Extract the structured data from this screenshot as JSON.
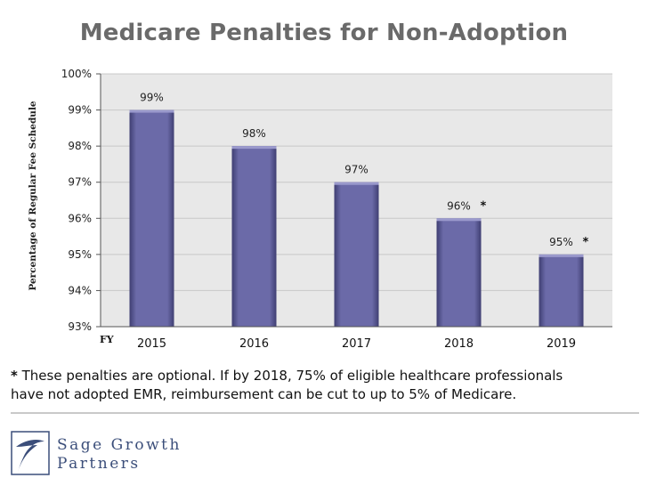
{
  "page": {
    "title": "Medicare Penalties for Non-Adoption",
    "footnote": {
      "star": "*",
      "line1": " These penalties are optional.  If by 2018, 75% of eligible healthcare professionals",
      "line2": "have not adopted EMR, reimbursement can be cut to up to 5% of Medicare."
    },
    "logo": {
      "line1": "Sage Growth",
      "line2": "Partners",
      "icon": "swoosh-logo-icon"
    }
  },
  "chart_data": {
    "type": "bar",
    "title": "",
    "ylabel": "Percentage of Regular Fee Schedule",
    "xlabel": "FY",
    "categories": [
      "2015",
      "2016",
      "2017",
      "2018",
      "2019"
    ],
    "values": [
      99,
      98,
      97,
      96,
      95
    ],
    "value_labels": [
      "99%",
      "98%",
      "97%",
      "96%",
      "95%"
    ],
    "optional_marker": [
      false,
      false,
      false,
      true,
      true
    ],
    "marker_text": "*",
    "ylim": [
      93,
      100
    ],
    "yticks": [
      93,
      94,
      95,
      96,
      97,
      98,
      99,
      100
    ],
    "ytick_labels": [
      "93%",
      "94%",
      "95%",
      "96%",
      "97%",
      "98%",
      "99%",
      "100%"
    ],
    "grid": true,
    "colors": {
      "bar": "#6b6aa8",
      "bar_dark": "#3f3e72",
      "plot_bg": "#e8e8e8",
      "grid": "#c8c8c8"
    }
  }
}
